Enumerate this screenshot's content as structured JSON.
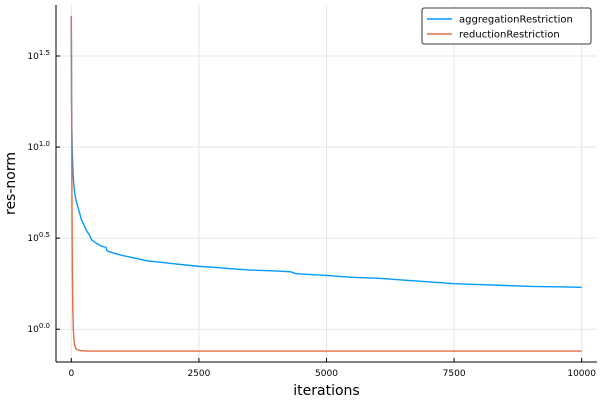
{
  "chart_data": {
    "type": "line",
    "xlabel": "iterations",
    "ylabel": "res-norm",
    "y_scale": "log10",
    "grid": true,
    "legend_position": "top-right",
    "xlim": [
      -300,
      10300
    ],
    "ylim": [
      -0.18,
      1.78
    ],
    "xticks": [
      {
        "value": 0,
        "label": "0"
      },
      {
        "value": 2500,
        "label": "2500"
      },
      {
        "value": 5000,
        "label": "5000"
      },
      {
        "value": 7500,
        "label": "7500"
      },
      {
        "value": 10000,
        "label": "10000"
      }
    ],
    "yticks": [
      {
        "value": 0.0,
        "base": "10",
        "exp": "0.0"
      },
      {
        "value": 0.5,
        "base": "10",
        "exp": "0.5"
      },
      {
        "value": 1.0,
        "base": "10",
        "exp": "1.0"
      },
      {
        "value": 1.5,
        "base": "10",
        "exp": "1.5"
      }
    ],
    "series": [
      {
        "name": "aggregationRestriction",
        "color": "#009af9",
        "x": [
          0,
          5,
          10,
          20,
          35,
          50,
          75,
          100,
          150,
          200,
          250,
          300,
          350,
          400,
          500,
          600,
          680,
          700,
          800,
          1000,
          1250,
          1500,
          2000,
          2500,
          2800,
          3000,
          3500,
          4000,
          4300,
          4400,
          5000,
          5500,
          6000,
          6500,
          7000,
          7500,
          8000,
          8500,
          9000,
          9500,
          10000
        ],
        "y": [
          1.72,
          1.25,
          1.12,
          0.97,
          0.85,
          0.79,
          0.73,
          0.7,
          0.65,
          0.6,
          0.57,
          0.54,
          0.52,
          0.49,
          0.47,
          0.455,
          0.45,
          0.43,
          0.42,
          0.405,
          0.39,
          0.375,
          0.36,
          0.345,
          0.34,
          0.335,
          0.325,
          0.32,
          0.315,
          0.305,
          0.295,
          0.285,
          0.28,
          0.27,
          0.26,
          0.25,
          0.245,
          0.24,
          0.235,
          0.233,
          0.23
        ]
      },
      {
        "name": "reductionRestriction",
        "color": "#e26f46",
        "x": [
          0,
          5,
          10,
          15,
          20,
          30,
          40,
          50,
          60,
          80,
          100,
          150,
          200,
          300,
          500,
          1000,
          2500,
          5000,
          7500,
          10000
        ],
        "y": [
          1.72,
          1.3,
          0.9,
          0.6,
          0.35,
          0.1,
          0.0,
          -0.05,
          -0.08,
          -0.1,
          -0.11,
          -0.115,
          -0.118,
          -0.12,
          -0.12,
          -0.12,
          -0.12,
          -0.12,
          -0.12,
          -0.12
        ]
      }
    ]
  }
}
